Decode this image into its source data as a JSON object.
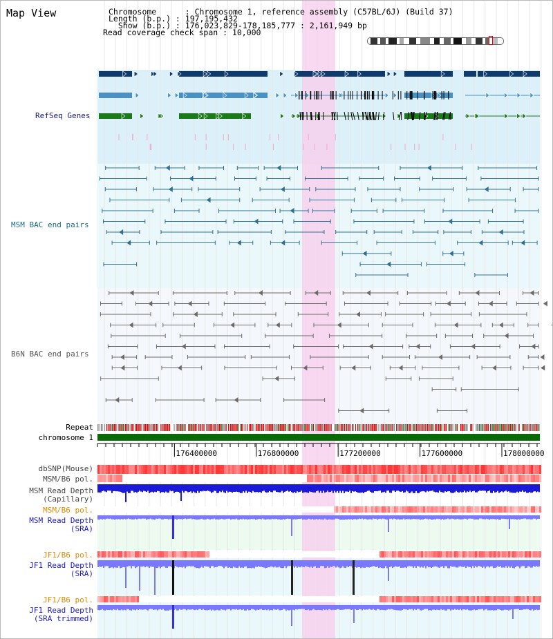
{
  "header": {
    "title": "Map View",
    "chromosome_line": "Chromosome      : Chromosome 1, reference assembly (C57BL/6J) (Build 37)",
    "length_line": "Length (b.p.) : 197,195,432",
    "show_line": "  Show (b.p.) : 176,023,829-178,185,777 : 2,161,949 bp",
    "coverage_line": "Read coverage check span : 10,000"
  },
  "tracks": {
    "refseq": "RefSeq Genes",
    "msm_bac": "MSM BAC end pairs",
    "b6n_bac": "B6N BAC end pairs",
    "repeat": "Repeat",
    "chromosome": "chromosome 1",
    "dbsnp": "dbSNP(Mouse)",
    "msm_b6_pol_1": "MSM/B6 pol.",
    "msm_read_depth_cap_1": "MSM Read Depth",
    "msm_read_depth_cap_2": "(Capillary)",
    "msm_b6_pol_2": "MSM/B6 pol.",
    "msm_read_depth_sra_1": "MSM Read Depth",
    "msm_read_depth_sra_2": "(SRA)",
    "jf1_b6_pol_1": "JF1/B6 pol.",
    "jf1_read_depth_sra_1": "JF1 Read Depth",
    "jf1_read_depth_sra_2": "(SRA)",
    "jf1_b6_pol_2": "JF1/B6 pol.",
    "jf1_read_depth_trim_1": "JF1 Read Depth",
    "jf1_read_depth_trim_2": "(SRA trimmed)"
  },
  "axis": {
    "ticks": [
      "176400000",
      "176800000",
      "177200000",
      "177600000",
      "178000000"
    ],
    "tick_positions_bp": [
      176400000,
      176800000,
      177200000,
      177600000,
      178000000
    ],
    "range_bp": [
      176023829,
      178185777
    ]
  },
  "colors": {
    "refseq_bg": "#dcf0fa",
    "bac_bg": "#eaf8fb",
    "highlight": "#f8d0ee",
    "gene_navy": "#0f3a6e",
    "gene_blue": "#4a90c0",
    "gene_green": "#1a7a1a",
    "msm_bac": "#2f6f8f",
    "b6n_bac": "#6a6a6a",
    "depth_blue": "#1a1ad8",
    "depth_light": "#7a78ff",
    "pol_red": "#e83030",
    "label_navy": "#14148c",
    "label_teal": "#1b6b8a",
    "label_gray": "#555555",
    "label_orange": "#e08a00",
    "label_blue": "#1a1acc"
  }
}
